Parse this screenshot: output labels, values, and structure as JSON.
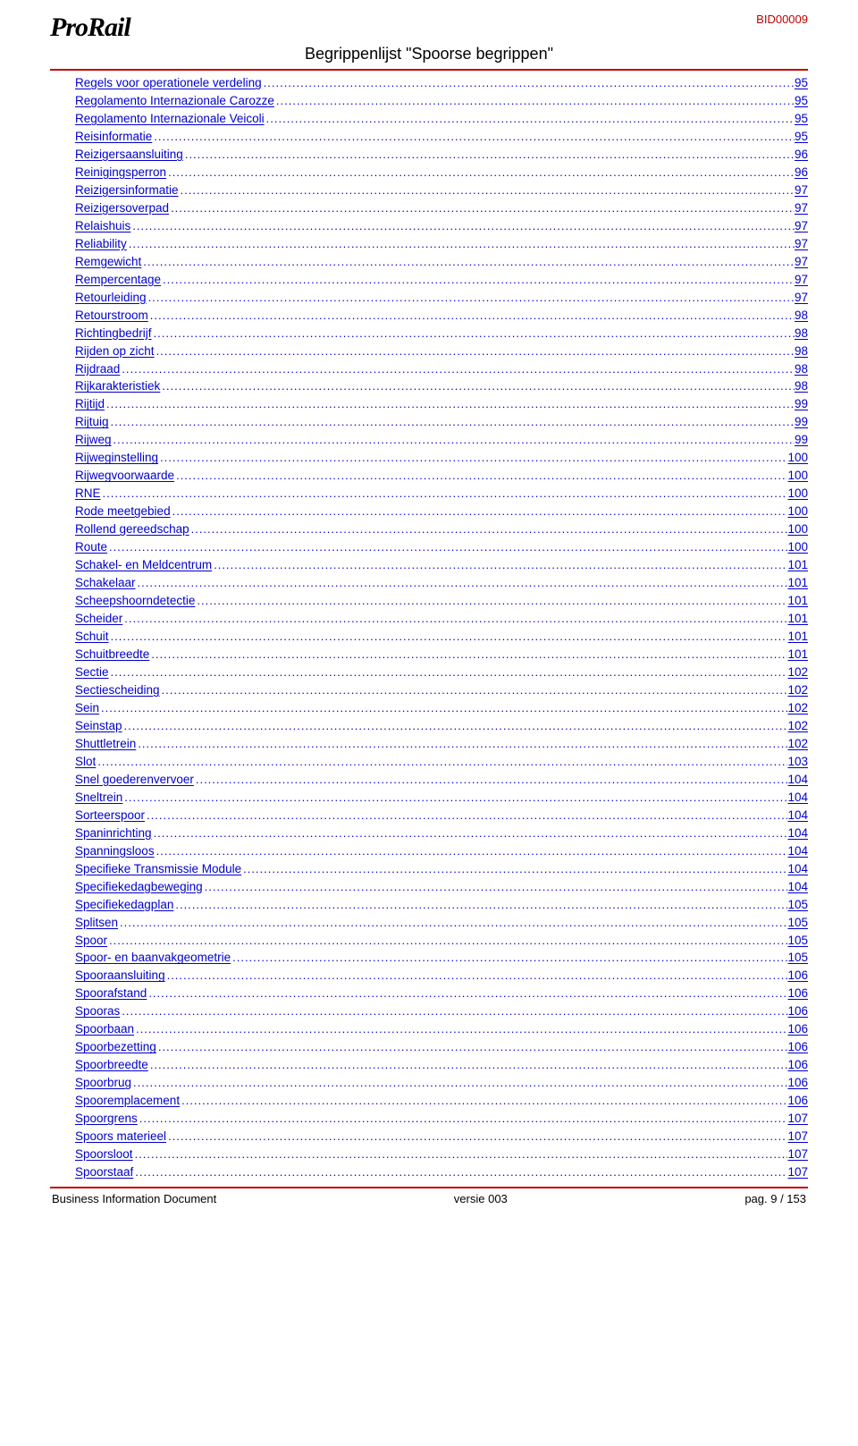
{
  "header": {
    "logo_text": "ProRail",
    "doc_id": "BID00009",
    "title": "Begrippenlijst \"Spoorse begrippen\""
  },
  "colors": {
    "accent": "#c00000",
    "link": "#0000cc",
    "text": "#000000",
    "background": "#ffffff"
  },
  "typography": {
    "body_family": "Arial",
    "body_size_pt": 10,
    "title_size_pt": 14,
    "logo_family": "Times New Roman"
  },
  "toc": [
    {
      "label": "Regels voor operationele verdeling",
      "page": "95"
    },
    {
      "label": "Regolamento Internazionale Carozze",
      "page": "95"
    },
    {
      "label": "Regolamento Internazionale Veicoli",
      "page": "95"
    },
    {
      "label": "Reisinformatie",
      "page": "95"
    },
    {
      "label": "Reizigersaansluiting",
      "page": "96"
    },
    {
      "label": "Reinigingsperron",
      "page": "96"
    },
    {
      "label": "Reizigersinformatie",
      "page": "97"
    },
    {
      "label": "Reizigersoverpad",
      "page": "97"
    },
    {
      "label": "Relaishuis",
      "page": "97"
    },
    {
      "label": "Reliability",
      "page": "97"
    },
    {
      "label": "Remgewicht",
      "page": "97"
    },
    {
      "label": "Rempercentage",
      "page": "97"
    },
    {
      "label": "Retourleiding",
      "page": "97"
    },
    {
      "label": "Retourstroom",
      "page": "98"
    },
    {
      "label": "Richtingbedrijf",
      "page": "98"
    },
    {
      "label": "Rijden op zicht",
      "page": "98"
    },
    {
      "label": "Rijdraad",
      "page": "98"
    },
    {
      "label": "Rijkarakteristiek",
      "page": "98"
    },
    {
      "label": "Rijtijd",
      "page": "99"
    },
    {
      "label": "Rijtuig",
      "page": "99"
    },
    {
      "label": "Rijweg",
      "page": "99"
    },
    {
      "label": "Rijweginstelling",
      "page": "100"
    },
    {
      "label": "Rijwegvoorwaarde",
      "page": "100"
    },
    {
      "label": "RNE",
      "page": "100"
    },
    {
      "label": "Rode meetgebied",
      "page": "100"
    },
    {
      "label": "Rollend gereedschap",
      "page": "100"
    },
    {
      "label": "Route",
      "page": "100"
    },
    {
      "label": "Schakel- en Meldcentrum",
      "page": "101"
    },
    {
      "label": "Schakelaar",
      "page": "101"
    },
    {
      "label": "Scheepshoorndetectie",
      "page": "101"
    },
    {
      "label": "Scheider",
      "page": "101"
    },
    {
      "label": "Schuit",
      "page": "101"
    },
    {
      "label": "Schuitbreedte",
      "page": "101"
    },
    {
      "label": "Sectie",
      "page": "102"
    },
    {
      "label": "Sectiescheiding",
      "page": "102"
    },
    {
      "label": "Sein",
      "page": "102"
    },
    {
      "label": "Seinstap",
      "page": "102"
    },
    {
      "label": "Shuttletrein",
      "page": "102"
    },
    {
      "label": "Slot",
      "page": "103"
    },
    {
      "label": "Snel goederenvervoer",
      "page": "104"
    },
    {
      "label": "Sneltrein",
      "page": "104"
    },
    {
      "label": "Sorteerspoor",
      "page": "104"
    },
    {
      "label": "Spaninrichting",
      "page": "104"
    },
    {
      "label": "Spanningsloos",
      "page": "104"
    },
    {
      "label": "Specifieke Transmissie Module",
      "page": "104"
    },
    {
      "label": "Specifiekedagbeweging",
      "page": "104"
    },
    {
      "label": "Specifiekedagplan",
      "page": "105"
    },
    {
      "label": "Splitsen",
      "page": "105"
    },
    {
      "label": "Spoor",
      "page": "105"
    },
    {
      "label": "Spoor- en baanvakgeometrie",
      "page": "105"
    },
    {
      "label": "Spooraansluiting",
      "page": "106"
    },
    {
      "label": "Spoorafstand",
      "page": "106"
    },
    {
      "label": "Spooras",
      "page": "106"
    },
    {
      "label": "Spoorbaan",
      "page": "106"
    },
    {
      "label": "Spoorbezetting",
      "page": "106"
    },
    {
      "label": "Spoorbreedte",
      "page": "106"
    },
    {
      "label": "Spoorbrug",
      "page": "106"
    },
    {
      "label": "Spooremplacement",
      "page": "106"
    },
    {
      "label": "Spoorgrens",
      "page": "107"
    },
    {
      "label": "Spoors materieel",
      "page": "107"
    },
    {
      "label": "Spoorsloot",
      "page": "107"
    },
    {
      "label": "Spoorstaaf",
      "page": "107"
    }
  ],
  "footer": {
    "left": "Business Information Document",
    "center": "versie 003",
    "right": "pag. 9 / 153"
  }
}
